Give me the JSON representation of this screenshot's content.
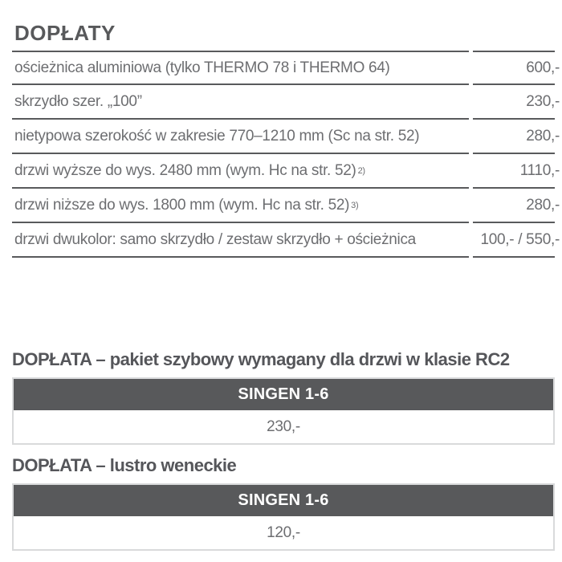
{
  "colors": {
    "heading_text": "#58595B",
    "row_text": "#6D6E71",
    "rule": "#595A5C",
    "bar_background": "#58595B",
    "bar_text": "#FFFFFF",
    "box_border": "#D9DADB",
    "page_background": "#FFFFFF"
  },
  "doplaty": {
    "title": "DOPŁATY",
    "rows": [
      {
        "label": "ościeżnica aluminiowa (tylko THERMO 78 i THERMO 64)",
        "price": "600,-"
      },
      {
        "label": "skrzydło szer. „100”",
        "price": "230,-"
      },
      {
        "label": "nietypowa szerokość w zakresie 770–1210 mm (Sc na str. 52)",
        "price": "280,-"
      },
      {
        "label": "drzwi wyższe do wys. 2480 mm (wym. Hc na str. 52)",
        "note_ref": "2)",
        "price": "1110,-"
      },
      {
        "label": "drzwi niższe do wys. 1800 mm (wym. Hc na str. 52)",
        "note_ref": "3)",
        "price": "280,-"
      },
      {
        "label": "drzwi dwukolor: samo skrzydło / zestaw skrzydło + ościeżnica",
        "price": "100,- / 550,-"
      }
    ]
  },
  "sections": [
    {
      "title": "DOPŁATA – pakiet szybowy wymagany dla drzwi w klasie RC2",
      "column_header": "SINGEN 1-6",
      "value": "230,-"
    },
    {
      "title": "DOPŁATA – lustro weneckie",
      "column_header": "SINGEN 1-6",
      "value": "120,-"
    }
  ]
}
